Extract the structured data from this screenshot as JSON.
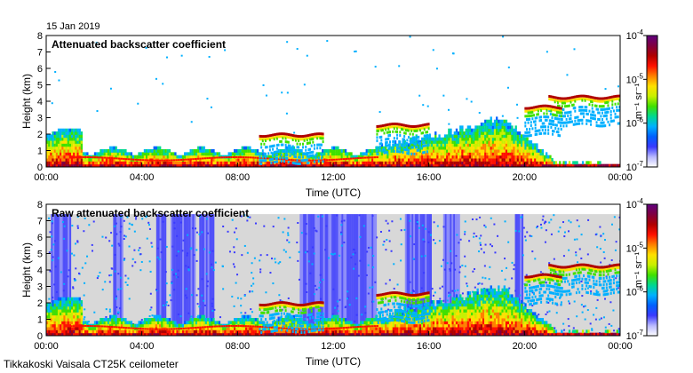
{
  "date": "15 Jan 2019",
  "footer": "Tikkakoski Vaisala CT25K ceilometer",
  "chart_data": [
    {
      "type": "heatmap",
      "title": "Attenuated backscatter coefficient",
      "xlabel": "Time (UTC)",
      "ylabel": "Height (km)",
      "xlim": [
        "00:00",
        "24:00"
      ],
      "ylim": [
        0,
        8
      ],
      "x_ticks": [
        "00:00",
        "04:00",
        "08:00",
        "12:00",
        "16:00",
        "20:00",
        "00:00"
      ],
      "y_ticks": [
        "0",
        "1",
        "2",
        "3",
        "4",
        "5",
        "6",
        "7",
        "8"
      ],
      "colorbar": {
        "scale": "log",
        "range": [
          1e-07,
          0.0001
        ],
        "unit": "m-1 sr-1",
        "colors": [
          "#ffffff",
          "#b8b8ff",
          "#3a3aff",
          "#0060ff",
          "#00b0ff",
          "#00d890",
          "#40e000",
          "#c8f000",
          "#ffe000",
          "#ff8000",
          "#ff1000",
          "#b00000",
          "#800040",
          "#600080"
        ]
      },
      "features": [
        {
          "name": "boundary layer aerosol",
          "t_start": 0,
          "t_end": 13.8,
          "h_top": 0.7
        },
        {
          "name": "cloud layer",
          "t_start": 8.9,
          "t_end": 11.6,
          "height": 1.9
        },
        {
          "name": "cloud layer",
          "t_start": 21.0,
          "t_end": 24.0,
          "height": 4.2
        },
        {
          "name": "cloud layer",
          "t_start": 20.0,
          "t_end": 21.5,
          "height": 3.6
        },
        {
          "name": "low cloud",
          "t_start": 13.8,
          "t_end": 16.0,
          "height": 2.5
        }
      ]
    },
    {
      "type": "heatmap",
      "title": "Raw attenuated backscatter coefficient",
      "xlabel": "Time (UTC)",
      "ylabel": "Height (km)",
      "xlim": [
        "00:00",
        "24:00"
      ],
      "ylim": [
        0,
        8
      ],
      "x_ticks": [
        "00:00",
        "04:00",
        "08:00",
        "12:00",
        "16:00",
        "20:00",
        "00:00"
      ],
      "y_ticks": [
        "0",
        "1",
        "2",
        "3",
        "4",
        "5",
        "6",
        "7",
        "8"
      ],
      "colorbar": {
        "scale": "log",
        "range": [
          1e-07,
          0.0001
        ],
        "unit": "m-1 sr-1"
      },
      "features": [
        {
          "name": "noise background",
          "t_start": 0,
          "t_end": 24,
          "h_top": 7.4
        },
        {
          "name": "cloud layer",
          "t_start": 8.9,
          "t_end": 11.6,
          "height": 1.9
        },
        {
          "name": "cloud layer",
          "t_start": 21.0,
          "t_end": 24.0,
          "height": 4.2
        }
      ]
    }
  ]
}
